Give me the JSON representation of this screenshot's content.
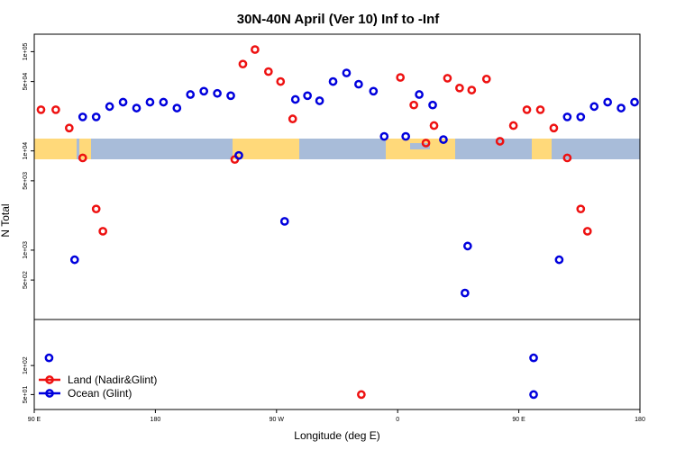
{
  "chart_data": {
    "type": "scatter",
    "title": "30N-40N April (Ver 10)   Inf to -Inf",
    "xlabel": "Longitude (deg E)",
    "ylabel": "N Total",
    "x_scale": "longitude",
    "x_tick_labels": [
      "90 E",
      "180",
      "90 W",
      "0",
      "90 E",
      "180"
    ],
    "x_tick_values": [
      90,
      180,
      270,
      360,
      450,
      540
    ],
    "xlim": [
      90,
      540
    ],
    "y_scale": "log",
    "top_panel": {
      "ylim": [
        200,
        150000
      ],
      "y_tick_labels": [
        "1e+05",
        "5e+04",
        "1e+04",
        "5e+03",
        "1e+03",
        "5e+02"
      ],
      "y_tick_values": [
        100000,
        50000,
        10000,
        5000,
        1000,
        500
      ]
    },
    "bottom_panel": {
      "ylim": [
        35,
        300
      ],
      "y_tick_labels": [
        "1e+02",
        "5e+01"
      ],
      "y_tick_values": [
        100,
        50
      ]
    },
    "map_strip": {
      "latitude_band": "30N-40N",
      "land_color": "#ffd97a",
      "ocean_color": "#a8bcd9"
    },
    "legend_position": "bottom-left",
    "series": [
      {
        "name": "Land (Nadir&Glint)",
        "color": "#ee1111",
        "points": [
          {
            "x": 95,
            "y": 26000
          },
          {
            "x": 106,
            "y": 26000
          },
          {
            "x": 116,
            "y": 17000
          },
          {
            "x": 126,
            "y": 8500
          },
          {
            "x": 136,
            "y": 2600
          },
          {
            "x": 141,
            "y": 1550
          },
          {
            "x": 239,
            "y": 8200
          },
          {
            "x": 245,
            "y": 75000
          },
          {
            "x": 254,
            "y": 105000
          },
          {
            "x": 264,
            "y": 63000
          },
          {
            "x": 273,
            "y": 50000
          },
          {
            "x": 282,
            "y": 21000
          },
          {
            "x": 333,
            "y": 50
          },
          {
            "x": 362,
            "y": 55000
          },
          {
            "x": 372,
            "y": 29000
          },
          {
            "x": 381,
            "y": 12000
          },
          {
            "x": 387,
            "y": 18000
          },
          {
            "x": 397,
            "y": 54000
          },
          {
            "x": 406,
            "y": 43000
          },
          {
            "x": 415,
            "y": 41000
          },
          {
            "x": 426,
            "y": 53000
          },
          {
            "x": 436,
            "y": 12500
          },
          {
            "x": 446,
            "y": 18000
          },
          {
            "x": 456,
            "y": 26000
          },
          {
            "x": 466,
            "y": 26000
          },
          {
            "x": 476,
            "y": 17000
          },
          {
            "x": 486,
            "y": 8500
          },
          {
            "x": 496,
            "y": 2600
          },
          {
            "x": 501,
            "y": 1550
          }
        ]
      },
      {
        "name": "Ocean (Glint)",
        "color": "#0000dd",
        "points": [
          {
            "x": 101,
            "y": 120
          },
          {
            "x": 120,
            "y": 800
          },
          {
            "x": 126,
            "y": 22000
          },
          {
            "x": 136,
            "y": 22000
          },
          {
            "x": 146,
            "y": 28000
          },
          {
            "x": 156,
            "y": 31000
          },
          {
            "x": 166,
            "y": 27000
          },
          {
            "x": 176,
            "y": 31000
          },
          {
            "x": 186,
            "y": 31000
          },
          {
            "x": 196,
            "y": 27000
          },
          {
            "x": 206,
            "y": 37000
          },
          {
            "x": 216,
            "y": 40000
          },
          {
            "x": 226,
            "y": 38000
          },
          {
            "x": 236,
            "y": 36000
          },
          {
            "x": 242,
            "y": 9000
          },
          {
            "x": 276,
            "y": 1950
          },
          {
            "x": 284,
            "y": 33000
          },
          {
            "x": 293,
            "y": 36000
          },
          {
            "x": 302,
            "y": 32000
          },
          {
            "x": 312,
            "y": 50000
          },
          {
            "x": 322,
            "y": 61000
          },
          {
            "x": 331,
            "y": 47000
          },
          {
            "x": 342,
            "y": 40000
          },
          {
            "x": 350,
            "y": 14000
          },
          {
            "x": 366,
            "y": 14000
          },
          {
            "x": 376,
            "y": 37000
          },
          {
            "x": 386,
            "y": 29000
          },
          {
            "x": 394,
            "y": 13000
          },
          {
            "x": 410,
            "y": 370
          },
          {
            "x": 412,
            "y": 1100
          },
          {
            "x": 461,
            "y": 120
          },
          {
            "x": 461,
            "y": 50
          },
          {
            "x": 480,
            "y": 800
          },
          {
            "x": 486,
            "y": 22000
          },
          {
            "x": 496,
            "y": 22000
          },
          {
            "x": 506,
            "y": 28000
          },
          {
            "x": 516,
            "y": 31000
          },
          {
            "x": 526,
            "y": 27000
          },
          {
            "x": 536,
            "y": 31000
          }
        ]
      }
    ]
  }
}
